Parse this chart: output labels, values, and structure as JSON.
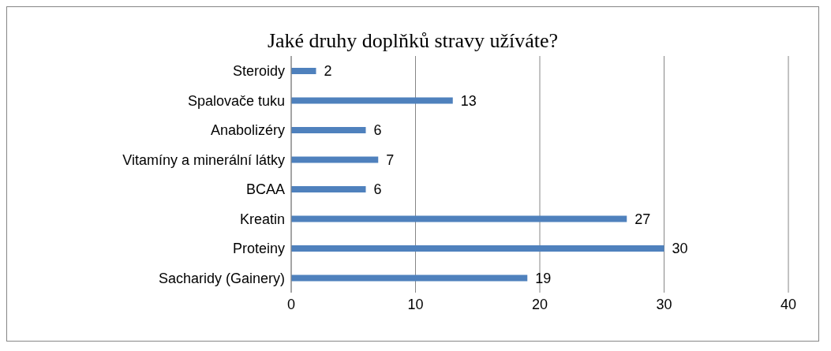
{
  "chart_data": {
    "type": "bar",
    "orientation": "horizontal",
    "title": "Jaké druhy doplňků stravy užíváte?",
    "categories": [
      "Steroidy",
      "Spalovače tuku",
      "Anabolizéry",
      "Vitamíny a minerální látky",
      "BCAA",
      "Kreatin",
      "Proteiny",
      "Sacharidy (Gainery)"
    ],
    "values": [
      2,
      13,
      6,
      7,
      6,
      27,
      30,
      19
    ],
    "color": "#4f81bd",
    "xlim": [
      0,
      40
    ],
    "xticks": [
      0,
      10,
      20,
      30,
      40
    ],
    "grid": "x",
    "data_labels": true
  }
}
